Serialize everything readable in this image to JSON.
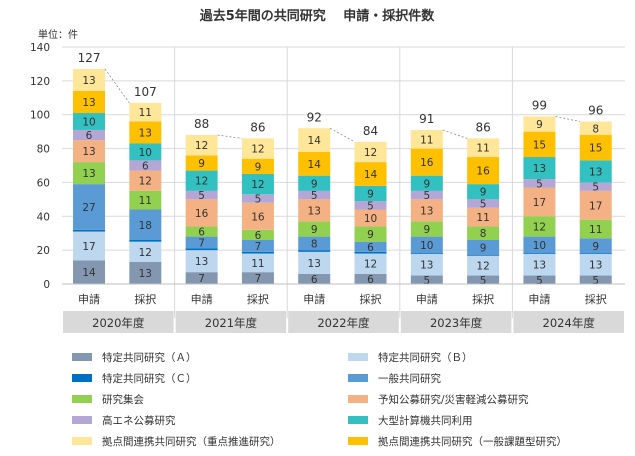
{
  "chart_data": {
    "type": "bar",
    "stacked": true,
    "title": "過去5年間の共同研究　 申請・採択件数",
    "ylabel": "単位：件",
    "ylim": [
      0,
      140
    ],
    "yticks": [
      0,
      20,
      40,
      60,
      80,
      100,
      120,
      140
    ],
    "grid": true,
    "legend_position": "bottom",
    "groups": [
      "2020年度",
      "2021年度",
      "2022年度",
      "2023年度",
      "2024年度"
    ],
    "subcategories": [
      "申請",
      "採択"
    ],
    "categories": [
      "2020年度 申請",
      "2020年度 採択",
      "2021年度 申請",
      "2021年度 採択",
      "2022年度 申請",
      "2022年度 採択",
      "2023年度 申請",
      "2023年度 採択",
      "2024年度 申請",
      "2024年度 採択"
    ],
    "totals": [
      127,
      107,
      88,
      86,
      92,
      84,
      91,
      86,
      99,
      96
    ],
    "series": [
      {
        "name": "特定共同研究（Ａ）",
        "color": "#8497b0",
        "values": [
          14,
          13,
          7,
          7,
          6,
          6,
          5,
          5,
          5,
          5
        ]
      },
      {
        "name": "特定共同研究（Ｂ）",
        "color": "#bdd7ee",
        "values": [
          17,
          12,
          13,
          11,
          13,
          12,
          13,
          12,
          13,
          13
        ]
      },
      {
        "name": "特定共同研究（Ｃ）",
        "color": "#0070c0",
        "values": [
          1,
          1,
          1,
          1,
          1,
          1,
          0,
          0,
          0,
          0
        ]
      },
      {
        "name": "一般共同研究",
        "color": "#5b9bd5",
        "values": [
          27,
          18,
          7,
          7,
          8,
          6,
          10,
          9,
          10,
          9
        ]
      },
      {
        "name": "研究集会",
        "color": "#92d050",
        "values": [
          13,
          11,
          6,
          6,
          9,
          9,
          9,
          8,
          12,
          11
        ]
      },
      {
        "name": "予知公募研究/災害軽減公募研究",
        "color": "#f4b183",
        "values": [
          13,
          12,
          16,
          16,
          13,
          10,
          13,
          11,
          17,
          17
        ]
      },
      {
        "name": "高エネ公募研究",
        "color": "#b4a7d6",
        "values": [
          6,
          6,
          5,
          5,
          5,
          5,
          5,
          5,
          5,
          5
        ]
      },
      {
        "name": "大型計算機共同利用",
        "color": "#33c0c0",
        "values": [
          10,
          10,
          12,
          12,
          9,
          9,
          9,
          9,
          13,
          13
        ]
      },
      {
        "name": "拠点間連携共同研究（一般課題型研究）",
        "color": "#ffc000",
        "values": [
          13,
          13,
          9,
          9,
          14,
          14,
          16,
          16,
          15,
          15
        ]
      },
      {
        "name": "拠点間連携共同研究（重点推進研究）",
        "color": "#ffe699",
        "values": [
          13,
          11,
          12,
          12,
          14,
          12,
          11,
          11,
          9,
          8
        ]
      }
    ]
  }
}
